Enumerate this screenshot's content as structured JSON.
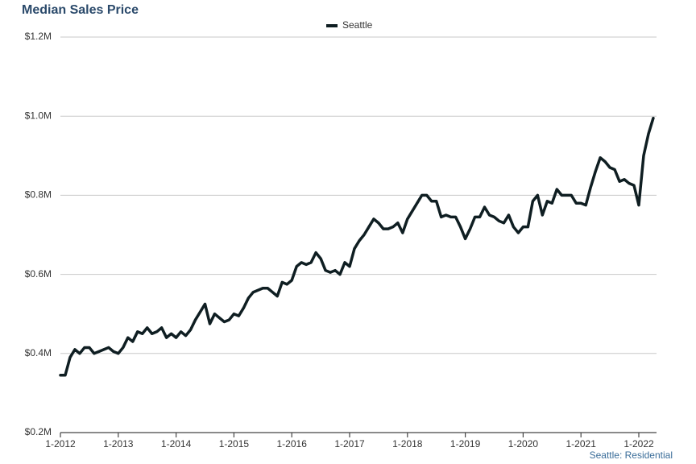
{
  "chart_data": {
    "type": "line",
    "title": "Median Sales Price",
    "source": "Seattle: Residential",
    "categories": [
      "1-2012",
      null,
      null,
      null,
      null,
      null,
      null,
      null,
      null,
      null,
      null,
      null,
      "1-2013",
      null,
      null,
      null,
      null,
      null,
      null,
      null,
      null,
      null,
      null,
      null,
      "1-2014",
      null,
      null,
      null,
      null,
      null,
      null,
      null,
      null,
      null,
      null,
      null,
      "1-2015",
      null,
      null,
      null,
      null,
      null,
      null,
      null,
      null,
      null,
      null,
      null,
      "1-2016",
      null,
      null,
      null,
      null,
      null,
      null,
      null,
      null,
      null,
      null,
      null,
      "1-2017",
      null,
      null,
      null,
      null,
      null,
      null,
      null,
      null,
      null,
      null,
      null,
      "1-2018",
      null,
      null,
      null,
      null,
      null,
      null,
      null,
      null,
      null,
      null,
      null,
      "1-2019",
      null,
      null,
      null,
      null,
      null,
      null,
      null,
      null,
      null,
      null,
      null,
      "1-2020",
      null,
      null,
      null,
      null,
      null,
      null,
      null,
      null,
      null,
      null,
      null,
      "1-2021",
      null,
      null,
      null,
      null,
      null,
      null,
      null,
      null,
      null,
      null,
      null,
      "1-2022",
      null,
      null,
      null
    ],
    "series": [
      {
        "name": "Seattle",
        "color": "#0f1e22",
        "values": [
          345000,
          345000,
          390000,
          410000,
          400000,
          415000,
          415000,
          400000,
          405000,
          410000,
          415000,
          405000,
          400000,
          415000,
          440000,
          430000,
          455000,
          450000,
          465000,
          450000,
          455000,
          465000,
          440000,
          450000,
          440000,
          455000,
          445000,
          460000,
          485000,
          505000,
          525000,
          475000,
          500000,
          490000,
          480000,
          485000,
          500000,
          495000,
          515000,
          540000,
          555000,
          560000,
          565000,
          565000,
          555000,
          545000,
          580000,
          575000,
          585000,
          620000,
          630000,
          625000,
          630000,
          655000,
          640000,
          610000,
          605000,
          610000,
          600000,
          630000,
          620000,
          665000,
          685000,
          700000,
          720000,
          740000,
          730000,
          715000,
          715000,
          720000,
          730000,
          705000,
          740000,
          760000,
          780000,
          800000,
          800000,
          785000,
          785000,
          745000,
          750000,
          745000,
          745000,
          720000,
          690000,
          715000,
          745000,
          745000,
          770000,
          750000,
          745000,
          735000,
          730000,
          750000,
          720000,
          705000,
          720000,
          720000,
          785000,
          800000,
          750000,
          785000,
          780000,
          815000,
          800000,
          800000,
          800000,
          780000,
          780000,
          775000,
          820000,
          860000,
          895000,
          885000,
          870000,
          865000,
          835000,
          840000,
          830000,
          825000,
          775000,
          900000,
          955000,
          995000
        ]
      }
    ],
    "ylim": [
      200000,
      1200000
    ],
    "yticks": [
      {
        "value": 200000,
        "label": "$0.2M"
      },
      {
        "value": 400000,
        "label": "$0.4M"
      },
      {
        "value": 600000,
        "label": "$0.6M"
      },
      {
        "value": 800000,
        "label": "$0.8M"
      },
      {
        "value": 1000000,
        "label": "$1.0M"
      },
      {
        "value": 1200000,
        "label": "$1.2M"
      }
    ],
    "grid": true
  }
}
